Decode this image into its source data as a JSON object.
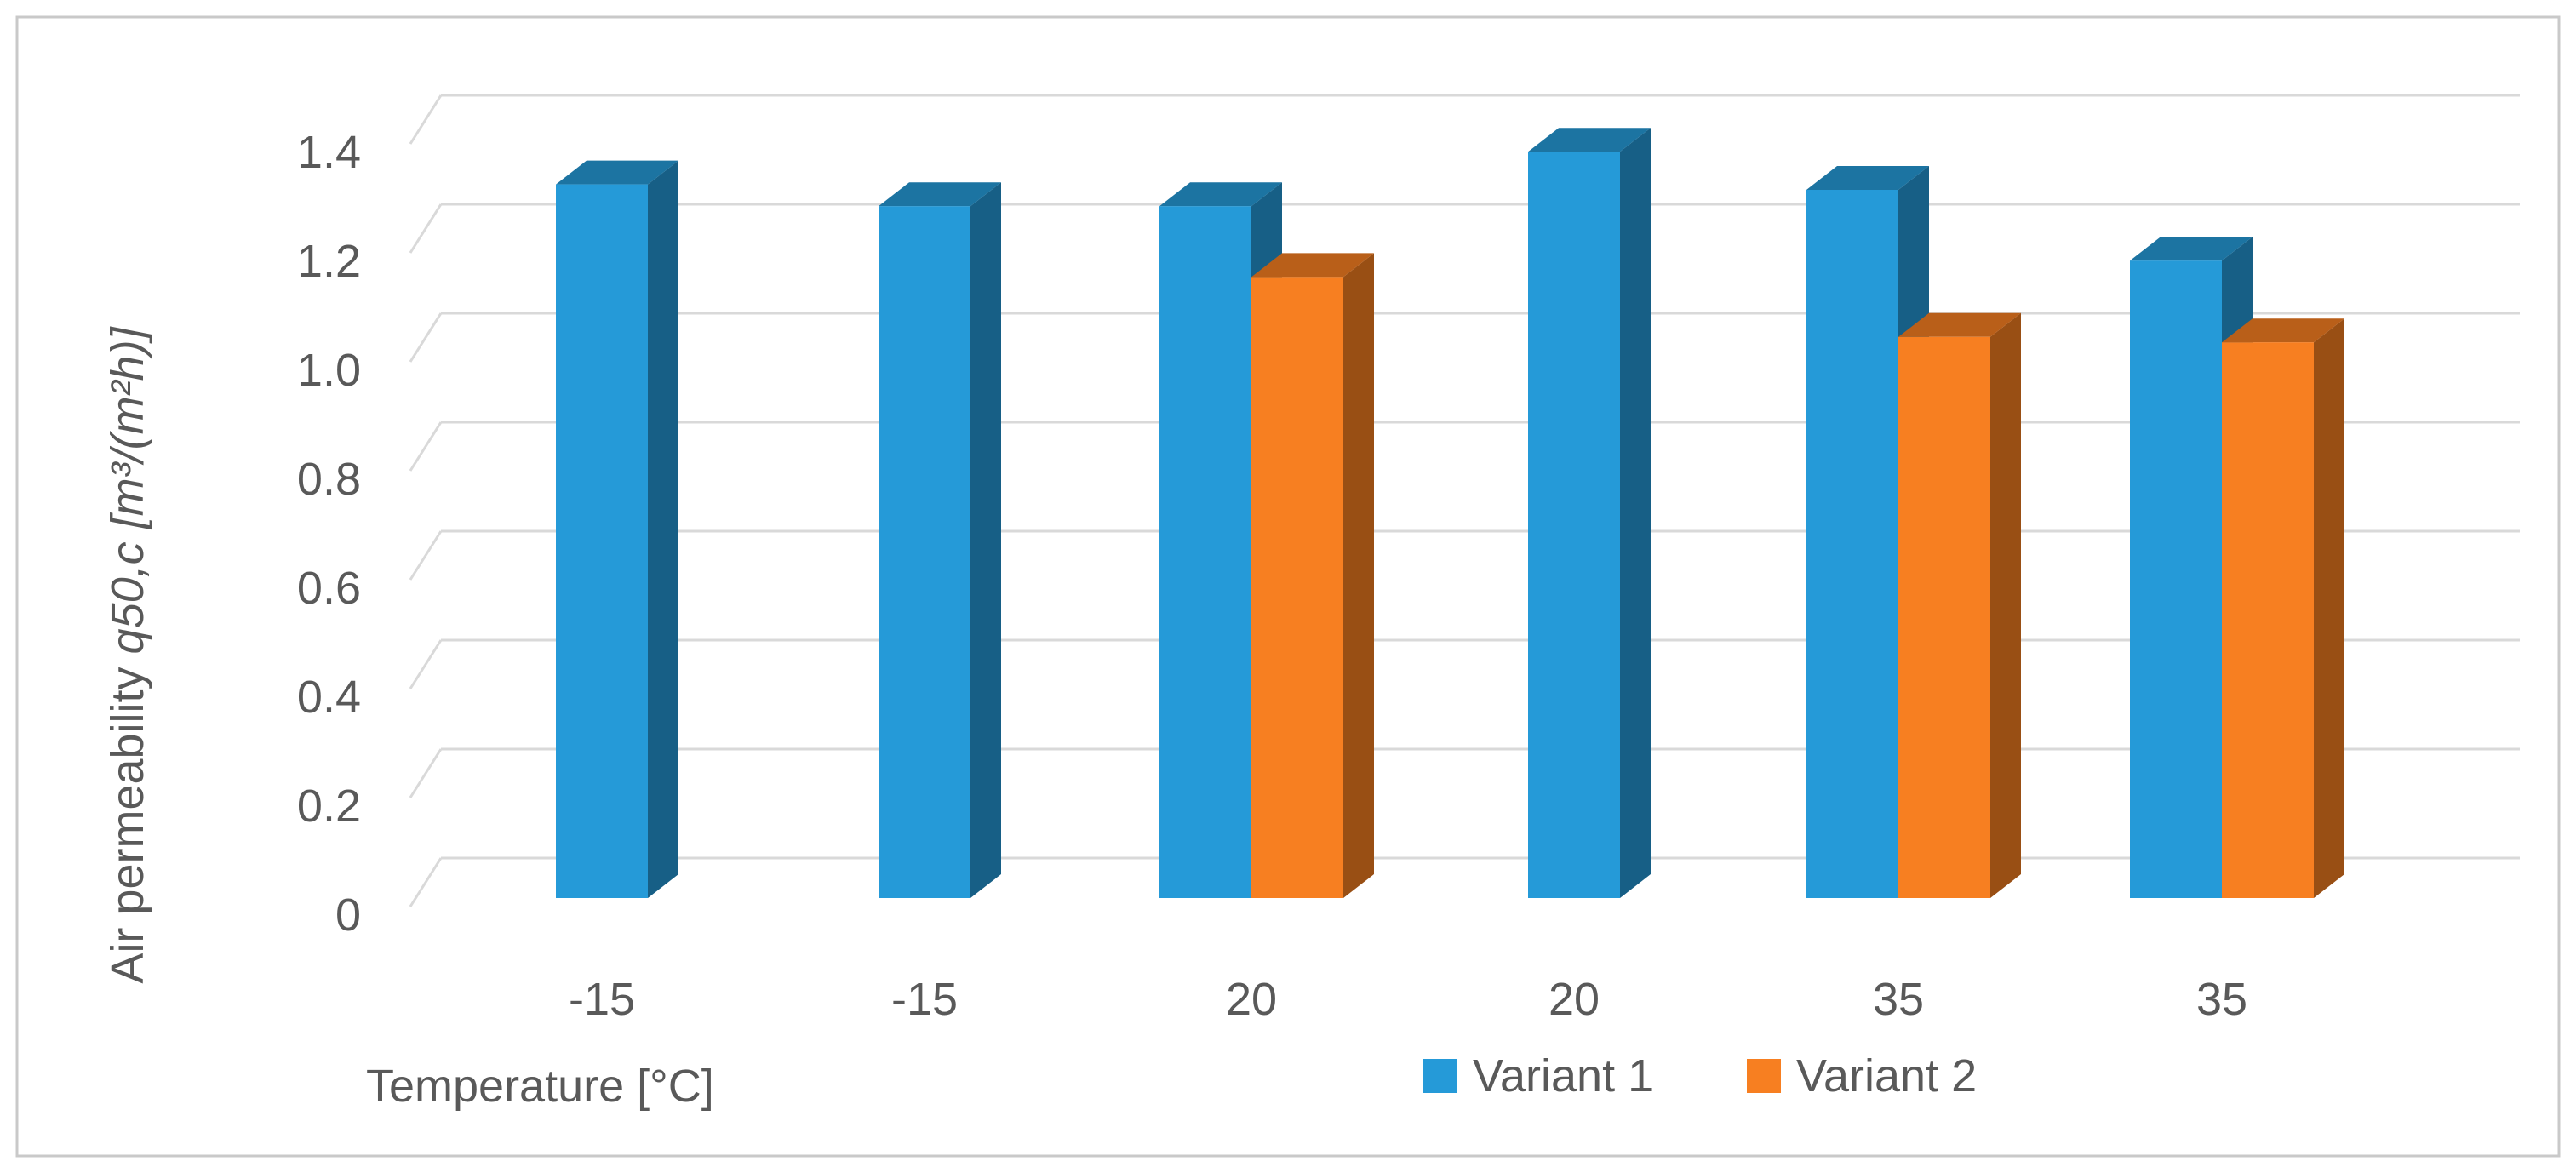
{
  "chart_data": {
    "type": "bar",
    "categories": [
      "-15",
      "-15",
      "20",
      "20",
      "35",
      "35"
    ],
    "series": [
      {
        "name": "Variant 1",
        "values": [
          1.31,
          1.27,
          1.27,
          1.37,
          1.3,
          1.17
        ],
        "color": "#259ad8"
      },
      {
        "name": "Variant 2",
        "values": [
          null,
          null,
          1.14,
          null,
          1.03,
          1.02
        ],
        "color": "#f77f21"
      }
    ],
    "xlabel": "Temperature [°C]",
    "ylabel_text": "Air permeability ",
    "ylabel_italic": "q50,c [m³/(m²h)]",
    "ylim": [
      0,
      1.4
    ],
    "yticks": [
      "0",
      "0.2",
      "0.4",
      "0.6",
      "0.8",
      "1.0",
      "1.2",
      "1.4"
    ],
    "legend_position": "bottom-right",
    "style": "3d-clustered-column"
  }
}
